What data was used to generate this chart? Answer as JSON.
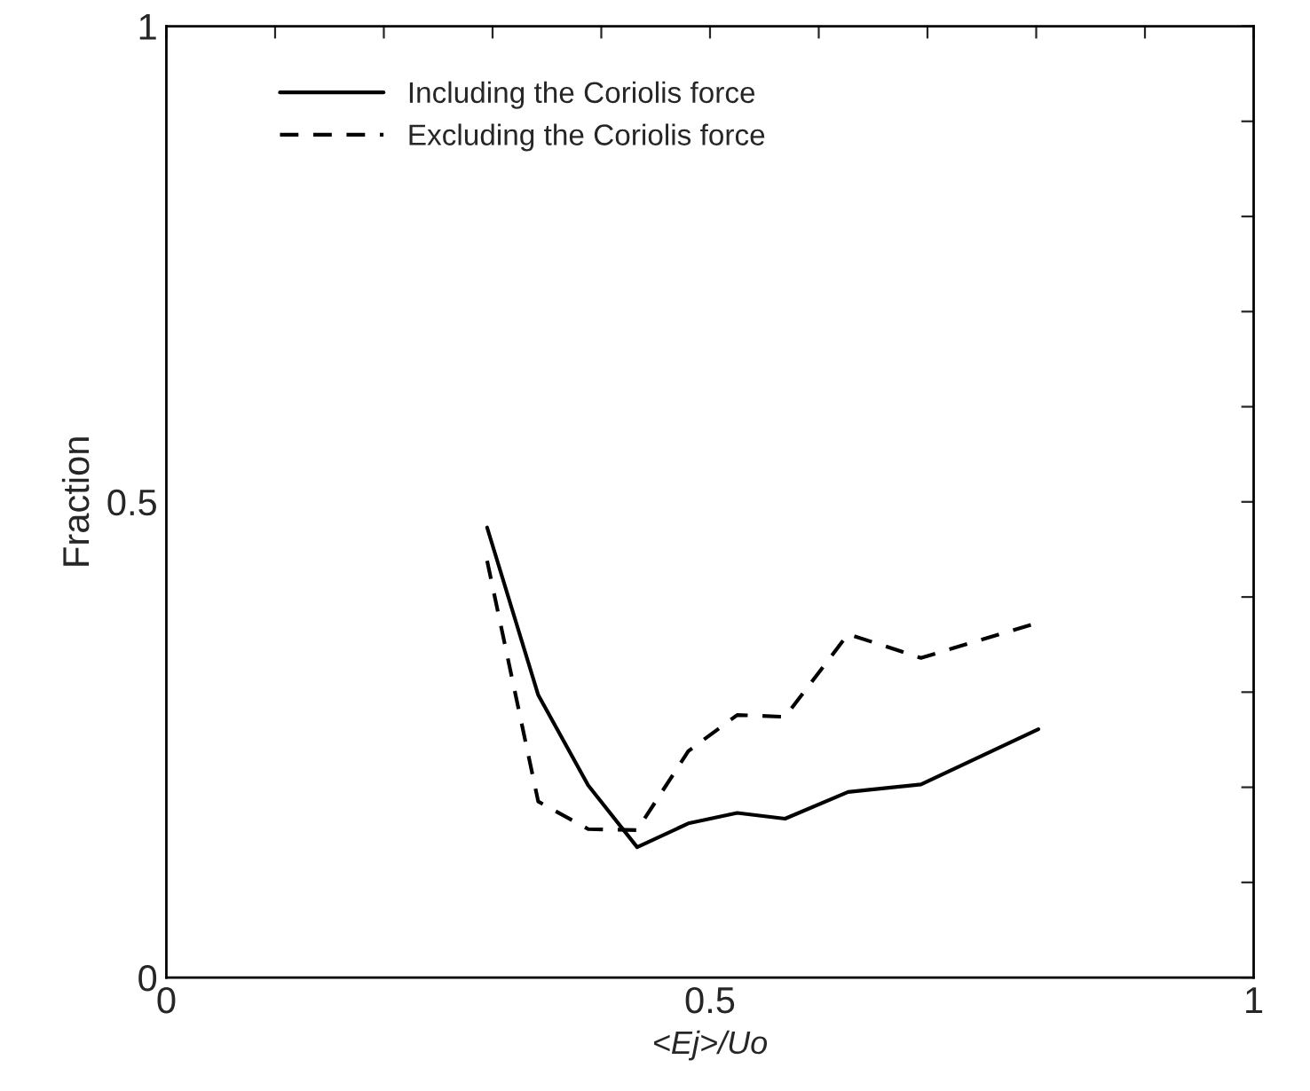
{
  "chart_data": {
    "type": "line",
    "xlabel": "<Ej>/Uo",
    "ylabel": "Fraction",
    "xlim": [
      0,
      1
    ],
    "ylim": [
      0,
      1
    ],
    "xticks": [
      0,
      {
        "value": 0.1,
        "label": null
      },
      {
        "value": 0.2,
        "label": null
      },
      {
        "value": 0.3,
        "label": null
      },
      {
        "value": 0.4,
        "label": null
      },
      0.5,
      {
        "value": 0.6,
        "label": null
      },
      {
        "value": 0.7,
        "label": null
      },
      {
        "value": 0.8,
        "label": null
      },
      {
        "value": 0.9,
        "label": null
      },
      1
    ],
    "yticks": [
      0,
      {
        "value": 0.1,
        "label": null
      },
      {
        "value": 0.2,
        "label": null
      },
      {
        "value": 0.3,
        "label": null
      },
      {
        "value": 0.4,
        "label": null
      },
      0.5,
      {
        "value": 0.6,
        "label": null
      },
      {
        "value": 0.7,
        "label": null
      },
      {
        "value": 0.8,
        "label": null
      },
      {
        "value": 0.9,
        "label": null
      },
      1
    ],
    "grid": false,
    "legend": "top left",
    "marker": "none",
    "series": [
      {
        "name": "Including the Coriolis force",
        "color": "#000000",
        "line_style": "solid",
        "x": [
          0.295,
          0.342,
          0.388,
          0.433,
          0.48,
          0.525,
          0.569,
          0.627,
          0.694,
          0.802
        ],
        "values": [
          0.473,
          0.297,
          0.202,
          0.137,
          0.162,
          0.173,
          0.167,
          0.195,
          0.203,
          0.261
        ]
      },
      {
        "name": "Excluding the Coriolis force",
        "color": "#000000",
        "line_style": "dashed",
        "x": [
          0.295,
          0.342,
          0.388,
          0.433,
          0.48,
          0.525,
          0.569,
          0.627,
          0.694,
          0.802
        ],
        "values": [
          0.438,
          0.185,
          0.156,
          0.155,
          0.238,
          0.276,
          0.274,
          0.361,
          0.336,
          0.373
        ]
      }
    ]
  }
}
